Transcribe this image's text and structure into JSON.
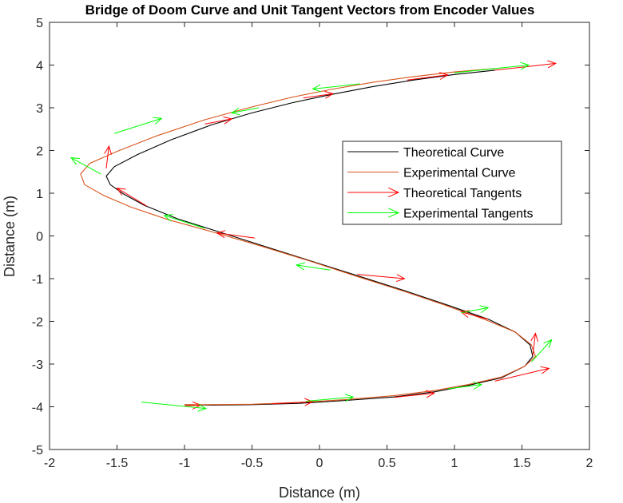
{
  "chart_data": {
    "type": "line",
    "title": "Bridge of Doom Curve and Unit Tangent Vectors from Encoder Values",
    "xlabel": "Distance (m)",
    "ylabel": "Distance (m)",
    "xlim": [
      -2,
      2
    ],
    "ylim": [
      -5,
      5
    ],
    "xticks": [
      -2,
      -1.5,
      -1,
      -0.5,
      0,
      0.5,
      1,
      1.5,
      2
    ],
    "xtick_labels": [
      "-2",
      "-1.5",
      "-1",
      "-0.5",
      "0",
      "0.5",
      "1",
      "1.5",
      "2"
    ],
    "yticks": [
      -5,
      -4,
      -3,
      -2,
      -1,
      0,
      1,
      2,
      3,
      4,
      5
    ],
    "ytick_labels": [
      "-5",
      "-4",
      "-3",
      "-2",
      "-1",
      "0",
      "1",
      "2",
      "3",
      "4",
      "5"
    ],
    "grid": false,
    "legend_position": "right-center",
    "series": [
      {
        "name": "Theoretical Curve",
        "color": "#000000",
        "x": [
          1.3,
          1.0,
          0.7,
          0.4,
          0.1,
          -0.2,
          -0.5,
          -0.8,
          -1.1,
          -1.35,
          -1.52,
          -1.58,
          -1.55,
          -1.45,
          -1.3,
          -1.05,
          -0.75,
          -0.4,
          -0.05,
          0.3,
          0.65,
          0.95,
          1.25,
          1.45,
          1.56,
          1.58,
          1.52,
          1.35,
          1.1,
          0.85,
          0.55,
          0.2,
          -0.15,
          -0.5,
          -0.8,
          -1.0
        ],
        "y": [
          3.88,
          3.78,
          3.65,
          3.5,
          3.32,
          3.12,
          2.88,
          2.6,
          2.25,
          1.9,
          1.62,
          1.4,
          1.2,
          0.98,
          0.72,
          0.4,
          0.1,
          -0.25,
          -0.6,
          -0.95,
          -1.3,
          -1.62,
          -1.95,
          -2.25,
          -2.55,
          -2.82,
          -3.05,
          -3.32,
          -3.5,
          -3.65,
          -3.77,
          -3.85,
          -3.92,
          -3.95,
          -3.96,
          -3.95
        ]
      },
      {
        "name": "Experimental Curve",
        "color": "#D95319",
        "x": [
          1.3,
          1.0,
          0.7,
          0.4,
          0.1,
          -0.2,
          -0.5,
          -0.85,
          -1.2,
          -1.5,
          -1.7,
          -1.77,
          -1.74,
          -1.6,
          -1.4,
          -1.12,
          -0.8,
          -0.45,
          -0.08,
          0.28,
          0.63,
          0.93,
          1.22,
          1.45,
          1.57,
          1.6,
          1.52,
          1.35,
          1.1,
          0.85,
          0.55,
          0.2,
          -0.15,
          -0.5,
          -0.8,
          -1.0
        ],
        "y": [
          3.92,
          3.84,
          3.73,
          3.6,
          3.44,
          3.25,
          3.02,
          2.72,
          2.35,
          1.98,
          1.7,
          1.45,
          1.2,
          0.95,
          0.68,
          0.38,
          0.1,
          -0.22,
          -0.58,
          -0.95,
          -1.3,
          -1.62,
          -1.95,
          -2.25,
          -2.55,
          -2.82,
          -3.05,
          -3.3,
          -3.48,
          -3.62,
          -3.74,
          -3.83,
          -3.9,
          -3.94,
          -3.95,
          -3.95
        ]
      },
      {
        "name": "Theoretical Tangents",
        "color": "#FF0000",
        "arrows": [
          {
            "x": 1.3,
            "y": 3.88,
            "u": 0.45,
            "v": 0.16
          },
          {
            "x": 0.65,
            "y": 3.65,
            "u": 0.3,
            "v": 0.12
          },
          {
            "x": -0.12,
            "y": 3.23,
            "u": 0.22,
            "v": 0.1
          },
          {
            "x": -0.85,
            "y": 2.62,
            "u": 0.2,
            "v": 0.12
          },
          {
            "x": -1.58,
            "y": 1.58,
            "u": 0.02,
            "v": 0.52
          },
          {
            "x": -1.28,
            "y": 0.7,
            "u": -0.22,
            "v": 0.42
          },
          {
            "x": -0.48,
            "y": -0.05,
            "u": -0.28,
            "v": 0.12
          },
          {
            "x": 0.28,
            "y": -0.9,
            "u": 0.35,
            "v": -0.1
          },
          {
            "x": 1.25,
            "y": -1.95,
            "u": -0.2,
            "v": 0.17
          },
          {
            "x": 1.58,
            "y": -2.8,
            "u": 0.02,
            "v": 0.52
          },
          {
            "x": 1.3,
            "y": -3.4,
            "u": 0.4,
            "v": 0.3
          },
          {
            "x": 0.55,
            "y": -3.78,
            "u": 0.3,
            "v": 0.1
          },
          {
            "x": -0.35,
            "y": -3.93,
            "u": 0.3,
            "v": 0.05
          },
          {
            "x": -1.0,
            "y": -3.98,
            "u": 0.12,
            "v": 0.02
          }
        ]
      },
      {
        "name": "Experimental Tangents",
        "color": "#00FF00",
        "arrows": [
          {
            "x": 1.0,
            "y": 3.82,
            "u": 0.55,
            "v": 0.18
          },
          {
            "x": 0.3,
            "y": 3.56,
            "u": -0.35,
            "v": -0.12
          },
          {
            "x": -0.45,
            "y": 3.0,
            "u": -0.2,
            "v": -0.12
          },
          {
            "x": -1.52,
            "y": 2.4,
            "u": 0.35,
            "v": 0.35
          },
          {
            "x": -1.62,
            "y": 1.45,
            "u": -0.22,
            "v": 0.38
          },
          {
            "x": -0.85,
            "y": 0.18,
            "u": -0.3,
            "v": 0.3
          },
          {
            "x": 0.08,
            "y": -0.8,
            "u": -0.25,
            "v": 0.12
          },
          {
            "x": 1.05,
            "y": -1.8,
            "u": 0.2,
            "v": 0.12
          },
          {
            "x": 1.57,
            "y": -2.95,
            "u": 0.15,
            "v": 0.52
          },
          {
            "x": 0.95,
            "y": -3.58,
            "u": 0.25,
            "v": 0.1
          },
          {
            "x": -0.1,
            "y": -3.87,
            "u": 0.35,
            "v": 0.1
          },
          {
            "x": -1.32,
            "y": -3.89,
            "u": 0.48,
            "v": -0.15
          }
        ]
      }
    ],
    "legend": [
      {
        "label": "Theoretical Curve",
        "color": "#000000",
        "style": "line"
      },
      {
        "label": "Experimental Curve",
        "color": "#D95319",
        "style": "line"
      },
      {
        "label": "Theoretical Tangents",
        "color": "#FF0000",
        "style": "arrow"
      },
      {
        "label": "Experimental Tangents",
        "color": "#00FF00",
        "style": "arrow"
      }
    ]
  }
}
